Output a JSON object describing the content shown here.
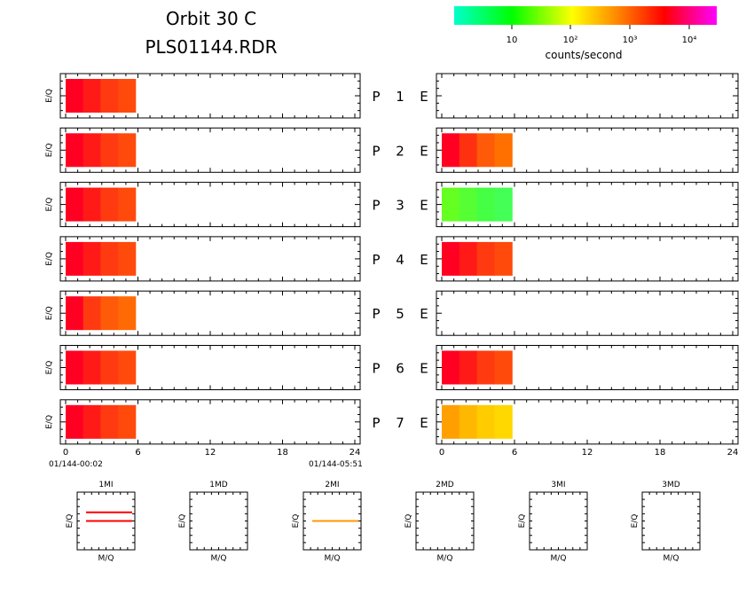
{
  "header": {
    "title_line1": "Orbit  30  C",
    "title_line2": "PLS01144.RDR"
  },
  "colorbar": {
    "label": "counts/second",
    "ticks": [
      "10",
      "10²",
      "10³",
      "10⁴"
    ],
    "gradient": [
      "#00ffcc",
      "#00ff00",
      "#ffff00",
      "#ff8800",
      "#ff0000",
      "#ff00ff"
    ]
  },
  "panel_ylabel": "E/Q",
  "rows": [
    {
      "p": "P",
      "num": "1",
      "e": "E"
    },
    {
      "p": "P",
      "num": "2",
      "e": "E"
    },
    {
      "p": "P",
      "num": "3",
      "e": "E"
    },
    {
      "p": "P",
      "num": "4",
      "e": "E"
    },
    {
      "p": "P",
      "num": "5",
      "e": "E"
    },
    {
      "p": "P",
      "num": "6",
      "e": "E"
    },
    {
      "p": "P",
      "num": "7",
      "e": "E"
    }
  ],
  "time_axis": {
    "ticks": [
      "0",
      "6",
      "12",
      "18",
      "24"
    ],
    "start_label": "01/144-00:02",
    "end_label": "01/144-05:51"
  },
  "mini_panels": [
    {
      "title": "1MI",
      "xlabel": "M/Q",
      "ylabel": "E/Q"
    },
    {
      "title": "1MD",
      "xlabel": "M/Q",
      "ylabel": "E/Q"
    },
    {
      "title": "2MI",
      "xlabel": "M/Q",
      "ylabel": "E/Q"
    },
    {
      "title": "2MD",
      "xlabel": "M/Q",
      "ylabel": "E/Q"
    },
    {
      "title": "3MI",
      "xlabel": "M/Q",
      "ylabel": "E/Q"
    },
    {
      "title": "3MD",
      "xlabel": "M/Q",
      "ylabel": "E/Q"
    }
  ],
  "chart_data": {
    "type": "heatmap",
    "x_range_hours": [
      0,
      24
    ],
    "x_ticks": [
      0,
      6,
      12,
      18,
      24
    ],
    "colorbar_scale": "log",
    "data_extent_hours": [
      0,
      5.8
    ],
    "left_column": [
      {
        "row": 1,
        "colors": [
          "#ff0022",
          "#ff1a18",
          "#ff3a10",
          "#ff4a0c"
        ]
      },
      {
        "row": 2,
        "colors": [
          "#ff0022",
          "#ff1a18",
          "#ff3a10",
          "#ff4a0c"
        ]
      },
      {
        "row": 3,
        "colors": [
          "#ff0022",
          "#ff1a18",
          "#ff3a10",
          "#ff4a0c"
        ]
      },
      {
        "row": 4,
        "colors": [
          "#ff0022",
          "#ff1a18",
          "#ff3a10",
          "#ff4a0c"
        ]
      },
      {
        "row": 5,
        "colors": [
          "#ff0022",
          "#ff3a10",
          "#ff5a08",
          "#ff6a04"
        ]
      },
      {
        "row": 6,
        "colors": [
          "#ff0022",
          "#ff1a18",
          "#ff3a10",
          "#ff4a0c"
        ]
      },
      {
        "row": 7,
        "colors": [
          "#ff0022",
          "#ff1a18",
          "#ff3a10",
          "#ff4a0c"
        ]
      }
    ],
    "right_column": [
      {
        "row": 1,
        "colors": []
      },
      {
        "row": 2,
        "colors": [
          "#ff0022",
          "#ff3010",
          "#ff5a08",
          "#ff7000"
        ]
      },
      {
        "row": 3,
        "colors": [
          "#66ff22",
          "#55ff33",
          "#44ff44",
          "#44ff55"
        ]
      },
      {
        "row": 4,
        "colors": [
          "#ff0022",
          "#ff1a18",
          "#ff3a10",
          "#ff4a0c"
        ]
      },
      {
        "row": 5,
        "colors": []
      },
      {
        "row": 6,
        "colors": [
          "#ff0022",
          "#ff1a18",
          "#ff3a10",
          "#ff4a0c"
        ]
      },
      {
        "row": 7,
        "colors": [
          "#ffa000",
          "#ffb800",
          "#ffcc00",
          "#ffd800"
        ]
      }
    ],
    "mini_lines": [
      {
        "panel": "1MI",
        "color": "#ff0000",
        "levels": [
          0.35,
          0.5
        ]
      },
      {
        "panel": "2MI",
        "color": "#ff9900",
        "levels": [
          0.5
        ]
      }
    ]
  }
}
